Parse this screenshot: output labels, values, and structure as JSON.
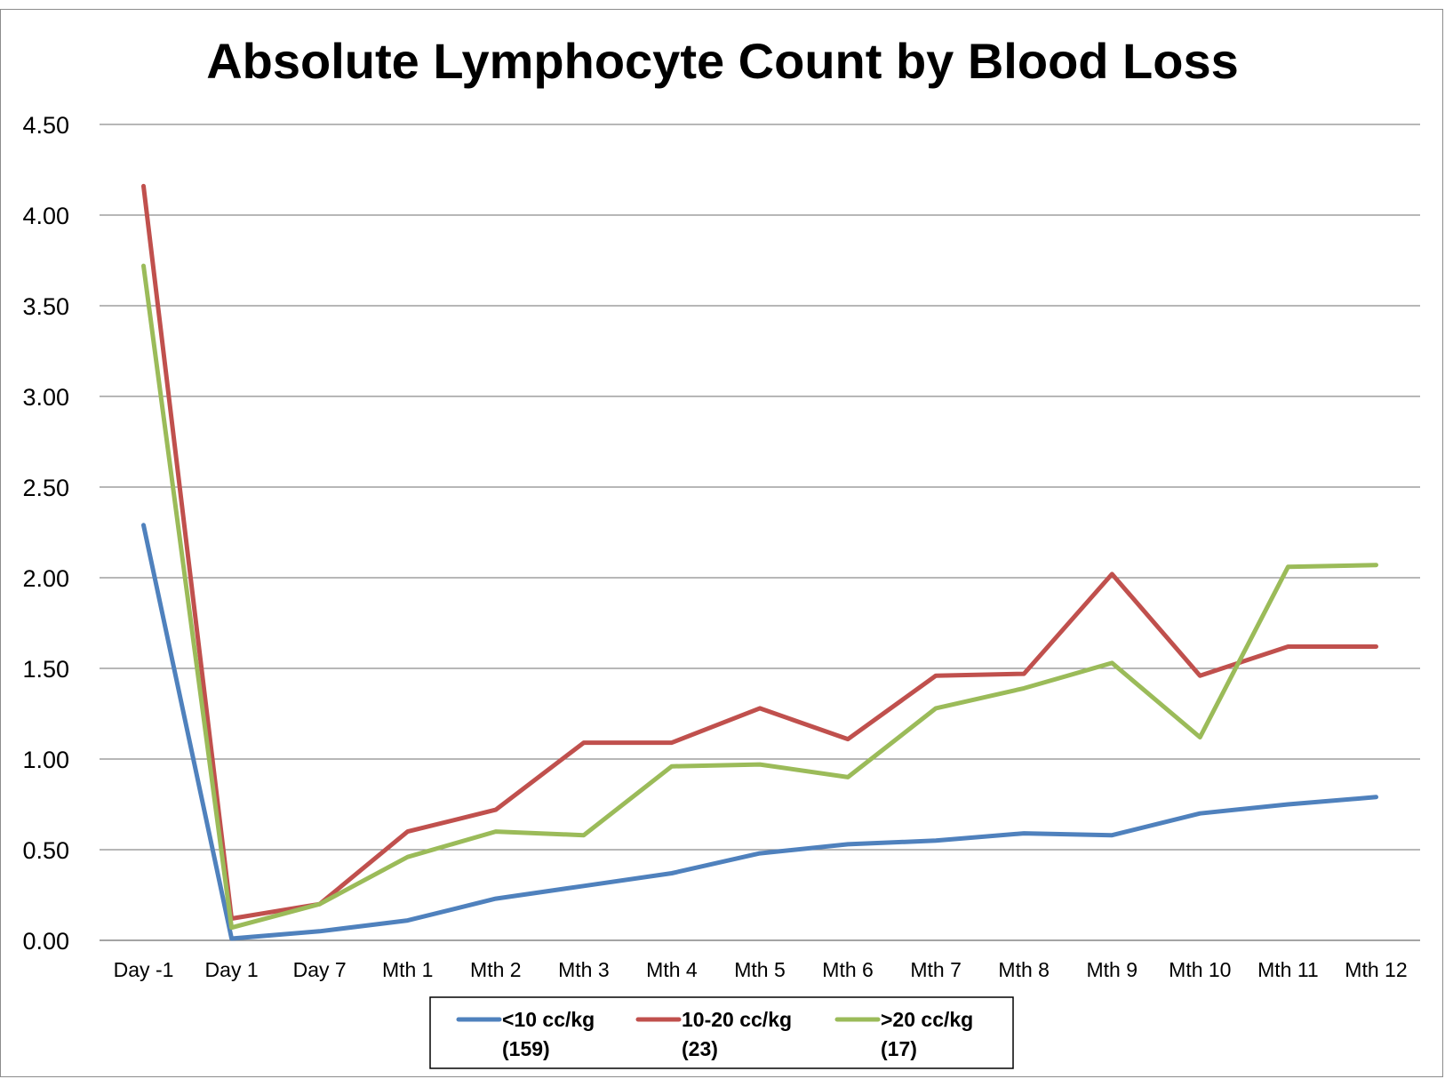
{
  "chart_data": {
    "type": "line",
    "title": "Absolute Lymphocyte Count by Blood Loss",
    "xlabel": "",
    "ylabel": "",
    "categories": [
      "Day -1",
      "Day 1",
      "Day 7",
      "Mth 1",
      "Mth 2",
      "Mth 3",
      "Mth 4",
      "Mth 5",
      "Mth 6",
      "Mth 7",
      "Mth 8",
      "Mth 9",
      "Mth 10",
      "Mth 11",
      "Mth 12"
    ],
    "y_ticks": [
      "0.00",
      "0.50",
      "1.00",
      "1.50",
      "2.00",
      "2.50",
      "3.00",
      "3.50",
      "4.00",
      "4.50"
    ],
    "ylim": [
      0,
      4.5
    ],
    "grid": "horizontal",
    "legend_position": "bottom",
    "series": [
      {
        "name": "<10 cc/kg",
        "name_line2": "(159)",
        "color": "#4f81bd",
        "values": [
          2.29,
          0.01,
          0.05,
          0.11,
          0.23,
          0.3,
          0.37,
          0.48,
          0.53,
          0.55,
          0.59,
          0.58,
          0.7,
          0.75,
          0.79
        ]
      },
      {
        "name": "10-20 cc/kg",
        "name_line2": "(23)",
        "color": "#c0504d",
        "values": [
          4.16,
          0.12,
          0.2,
          0.6,
          0.72,
          1.09,
          1.09,
          1.28,
          1.11,
          1.46,
          1.47,
          2.02,
          1.46,
          1.62,
          1.62
        ]
      },
      {
        "name": ">20 cc/kg",
        "name_line2": "(17)",
        "color": "#9bbb59",
        "values": [
          3.72,
          0.07,
          0.2,
          0.46,
          0.6,
          0.58,
          0.96,
          0.97,
          0.9,
          1.28,
          1.39,
          1.53,
          1.12,
          2.06,
          2.07
        ]
      }
    ]
  }
}
